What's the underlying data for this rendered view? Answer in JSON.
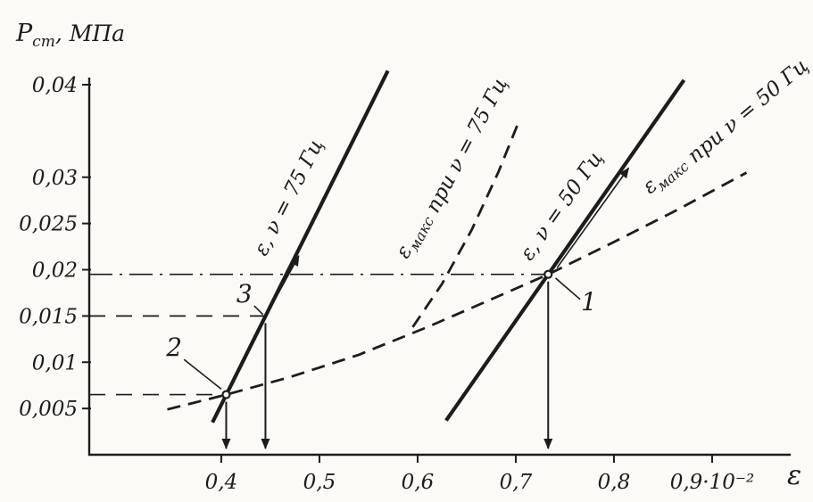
{
  "theme": {
    "ink": "#1c1c1c",
    "paper": "#fbfaf6"
  },
  "figure": {
    "ylabel": {
      "main": "P",
      "sub": "ст",
      "unit": ", МПа"
    },
    "xlabel": "ε"
  },
  "chart_data": {
    "type": "line",
    "title": "",
    "grid": false,
    "legend_position": "labels-on-curves",
    "x_axis": {
      "label": "ε",
      "min": 0.2655,
      "max": 0.9764,
      "units_multiplier": "10⁻²",
      "ticks": [
        {
          "v": 0.4,
          "label": "0,4"
        },
        {
          "v": 0.5,
          "label": "0,5"
        },
        {
          "v": 0.6,
          "label": "0,6"
        },
        {
          "v": 0.7,
          "label": "0,7"
        },
        {
          "v": 0.8,
          "label": "0,8"
        },
        {
          "v": 0.9,
          "label": "0,9·10⁻²"
        }
      ]
    },
    "y_axis": {
      "label": "Pст, МПа",
      "min": 0,
      "max": 0.04,
      "ticks": [
        {
          "v": 0.04,
          "label": "0,04"
        },
        {
          "v": 0.03,
          "label": "0,03"
        },
        {
          "v": 0.025,
          "label": "0,025"
        },
        {
          "v": 0.02,
          "label": "0,02"
        },
        {
          "v": 0.015,
          "label": "0,015"
        },
        {
          "v": 0.01,
          "label": "0,01"
        },
        {
          "v": 0.005,
          "label": "0,005"
        }
      ]
    },
    "series": [
      {
        "id": "eps-75",
        "label": "ε, ν = 75 Гц",
        "style": "solid",
        "stroke_width": 4.2,
        "points": [
          [
            0.391,
            0.0035
          ],
          [
            0.5697,
            0.0415
          ]
        ]
      },
      {
        "id": "eps-50",
        "label": "ε, ν = 50 Гц",
        "style": "solid",
        "stroke_width": 4.2,
        "points": [
          [
            0.629,
            0.0037
          ],
          [
            0.8713,
            0.0405
          ]
        ]
      },
      {
        "id": "eps-max-50",
        "label": "εмакс при ν = 50 Гц",
        "style": "dashed",
        "stroke_width": 2.8,
        "points": [
          [
            0.345,
            0.0049
          ],
          [
            0.405,
            0.0065
          ],
          [
            0.47,
            0.0084
          ],
          [
            0.54,
            0.0108
          ],
          [
            0.61,
            0.0138
          ],
          [
            0.675,
            0.0168
          ],
          [
            0.733,
            0.0195
          ],
          [
            0.8,
            0.023
          ],
          [
            0.865,
            0.0265
          ],
          [
            0.935,
            0.0305
          ]
        ]
      },
      {
        "id": "eps-max-75",
        "label": "εмакс при ν = 75 Гц",
        "style": "dashed",
        "stroke_width": 2.8,
        "points": [
          [
            0.595,
            0.0138
          ],
          [
            0.625,
            0.0185
          ],
          [
            0.655,
            0.0243
          ],
          [
            0.682,
            0.0305
          ],
          [
            0.703,
            0.036
          ]
        ]
      }
    ],
    "curve_labels": [
      {
        "series": "eps-75",
        "rotation": -63,
        "x": 0.4745,
        "y": 0.0275,
        "parts": [
          {
            "t": "ε, ν = 75 Гц"
          }
        ]
      },
      {
        "series": "eps-50",
        "rotation": -55,
        "x": 0.752,
        "y": 0.0265,
        "parts": [
          {
            "t": "ε, ν = 50 Гц"
          }
        ]
      },
      {
        "series": "eps-max-75",
        "rotation": -62,
        "x": 0.638,
        "y": 0.0308,
        "parts": [
          {
            "t": "ε"
          },
          {
            "t": "макс",
            "sub": true
          },
          {
            "t": " при ν = 75 Гц"
          }
        ]
      },
      {
        "series": "eps-max-50",
        "rotation": -40,
        "x": 0.916,
        "y": 0.0352,
        "parts": [
          {
            "t": "ε"
          },
          {
            "t": "макс",
            "sub": true
          },
          {
            "t": " при ν = 50 Гц"
          }
        ]
      }
    ],
    "points": [
      {
        "id": "1",
        "x": 0.733,
        "y": 0.0195,
        "marker": true,
        "drop_arrow": true,
        "label": {
          "text": "1",
          "x": 0.7745,
          "y": 0.0156
        },
        "leader": [
          [
            0.7655,
            0.0168
          ],
          [
            0.7405,
            0.0191
          ]
        ]
      },
      {
        "id": "2",
        "x": 0.405,
        "y": 0.0065,
        "marker": true,
        "drop_arrow": true,
        "label": {
          "text": "2",
          "x": 0.352,
          "y": 0.0107
        },
        "leader": [
          [
            0.362,
            0.0103
          ],
          [
            0.4,
            0.0071
          ]
        ]
      },
      {
        "id": "3",
        "x": 0.445,
        "y": 0.015,
        "marker": false,
        "drop_arrow": true,
        "label": {
          "text": "3",
          "x": 0.4235,
          "y": 0.0165
        },
        "leader": [
          [
            0.4335,
            0.0161
          ],
          [
            0.4425,
            0.01515
          ]
        ]
      }
    ],
    "ref_lines": [
      {
        "p": 0.0195,
        "x_to": 0.733,
        "style": "dashdot"
      },
      {
        "p": 0.015,
        "x_to": 0.445,
        "style": "dashed"
      },
      {
        "p": 0.0065,
        "x_to": 0.405,
        "style": "dashed"
      }
    ],
    "flow_arrows": [
      {
        "from": [
          0.449,
          0.0157
        ],
        "to": [
          0.479,
          0.0215
        ]
      },
      {
        "from": [
          0.742,
          0.0202
        ],
        "to": [
          0.815,
          0.031
        ]
      }
    ]
  }
}
